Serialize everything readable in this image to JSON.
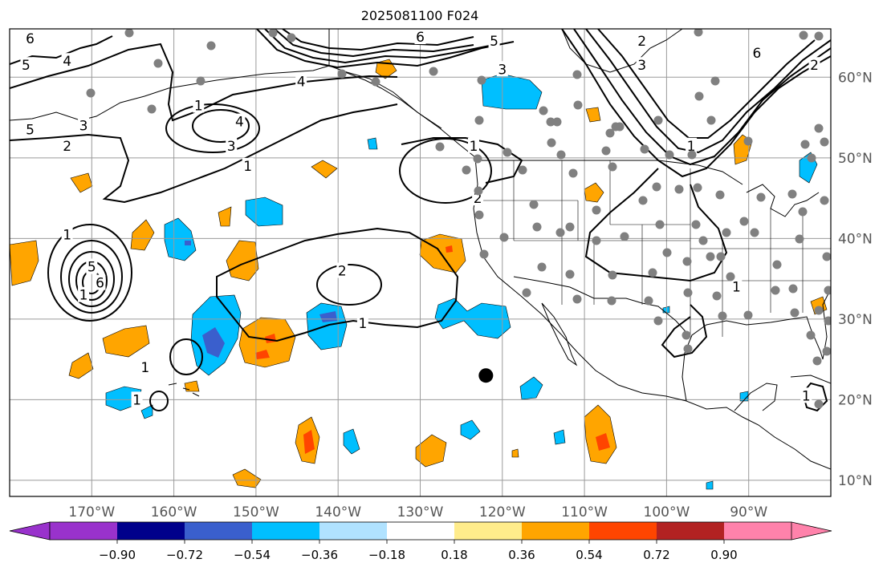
{
  "title": "2025081100 F024",
  "map": {
    "lon_range": [
      -180,
      -80
    ],
    "lat_range": [
      8,
      66
    ],
    "lon_ticks": [
      {
        "lon": -170,
        "label": "170°W"
      },
      {
        "lon": -160,
        "label": "160°W"
      },
      {
        "lon": -150,
        "label": "150°W"
      },
      {
        "lon": -140,
        "label": "140°W"
      },
      {
        "lon": -130,
        "label": "130°W"
      },
      {
        "lon": -120,
        "label": "120°W"
      },
      {
        "lon": -110,
        "label": "110°W"
      },
      {
        "lon": -100,
        "label": "100°W"
      },
      {
        "lon": -90,
        "label": "90°W"
      }
    ],
    "lat_ticks": [
      {
        "lat": 60,
        "label": "60°N"
      },
      {
        "lat": 50,
        "label": "50°N"
      },
      {
        "lat": 40,
        "label": "40°N"
      },
      {
        "lat": 30,
        "label": "30°N"
      },
      {
        "lat": 20,
        "label": "20°N"
      },
      {
        "lat": 10,
        "label": "10°N"
      }
    ],
    "gridlines": true,
    "center_marker": {
      "lon": -122,
      "lat": 23
    },
    "contour_labels": [
      {
        "text": "6",
        "lon": -177.5,
        "lat": 64.8
      },
      {
        "text": "5",
        "lon": -178,
        "lat": 61.5
      },
      {
        "text": "4",
        "lon": -173,
        "lat": 62
      },
      {
        "text": "5",
        "lon": -177.5,
        "lat": 53.5
      },
      {
        "text": "3",
        "lon": -171,
        "lat": 54
      },
      {
        "text": "2",
        "lon": -173,
        "lat": 51.5
      },
      {
        "text": "1",
        "lon": -157,
        "lat": 56.5
      },
      {
        "text": "4",
        "lon": -152,
        "lat": 54.5
      },
      {
        "text": "3",
        "lon": -153,
        "lat": 51.5
      },
      {
        "text": "1",
        "lon": -151,
        "lat": 49
      },
      {
        "text": "4",
        "lon": -144.5,
        "lat": 59.5
      },
      {
        "text": "6",
        "lon": -130,
        "lat": 65
      },
      {
        "text": "5",
        "lon": -121,
        "lat": 64.5
      },
      {
        "text": "3",
        "lon": -120,
        "lat": 61
      },
      {
        "text": "1",
        "lon": -123.5,
        "lat": 51.5
      },
      {
        "text": "2",
        "lon": -123,
        "lat": 45
      },
      {
        "text": "2",
        "lon": -103,
        "lat": 64.5
      },
      {
        "text": "3",
        "lon": -103,
        "lat": 61.5
      },
      {
        "text": "6",
        "lon": -89,
        "lat": 63
      },
      {
        "text": "2",
        "lon": -82,
        "lat": 61.5
      },
      {
        "text": "1",
        "lon": -97,
        "lat": 51.5
      },
      {
        "text": "1",
        "lon": -173,
        "lat": 40.5
      },
      {
        "text": "5",
        "lon": -170,
        "lat": 36.5
      },
      {
        "text": "6",
        "lon": -169,
        "lat": 34.5
      },
      {
        "text": "1",
        "lon": -171,
        "lat": 33
      },
      {
        "text": "2",
        "lon": -139.5,
        "lat": 36
      },
      {
        "text": "1",
        "lon": -137,
        "lat": 29.5
      },
      {
        "text": "1",
        "lon": -163.5,
        "lat": 24
      },
      {
        "text": "1",
        "lon": -164.5,
        "lat": 20
      },
      {
        "text": "1",
        "lon": -91.5,
        "lat": 34
      },
      {
        "text": "1",
        "lon": -83,
        "lat": 20.5
      }
    ]
  },
  "colorbar": {
    "bounds": [
      -1.08,
      -0.9,
      -0.72,
      -0.54,
      -0.36,
      -0.18,
      0.18,
      0.36,
      0.54,
      0.72,
      0.9,
      1.08
    ],
    "colors": [
      "#9932CC",
      "#00008B",
      "#3A5FCD",
      "#00BFFF",
      "#B0E2FF",
      "#FFFFFF",
      "#FFEC8B",
      "#FFA500",
      "#FF4500",
      "#B22222",
      "#FF82AB"
    ],
    "under_color": "#9932CC",
    "over_color": "#FF82AB",
    "tick_labels": [
      "−0.90",
      "−0.72",
      "−0.54",
      "−0.36",
      "−0.18",
      "0.18",
      "0.36",
      "0.54",
      "0.72",
      "0.90"
    ]
  }
}
